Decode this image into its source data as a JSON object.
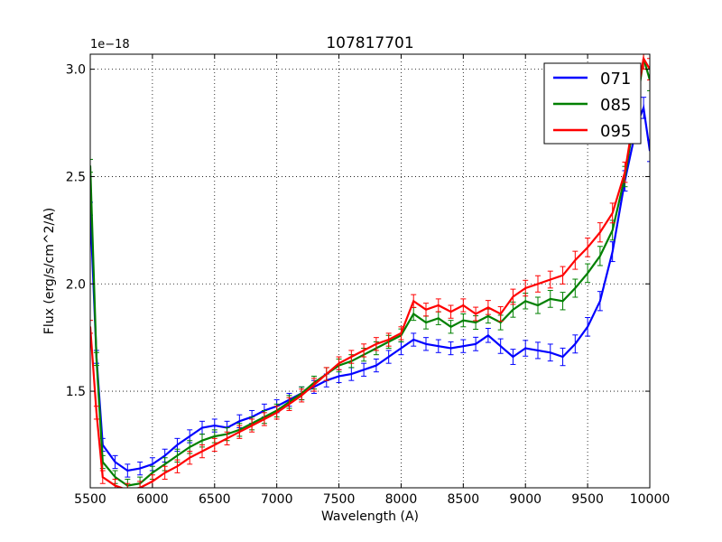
{
  "chart_data": {
    "type": "line",
    "title": "107817701",
    "xlabel": "Wavelength (A)",
    "ylabel": "Flux (erg/s/cm^2/A)",
    "offset_label": "1e−18",
    "xlim": [
      5500,
      10000
    ],
    "ylim": [
      1.05,
      3.07
    ],
    "xticks": [
      5500,
      6000,
      6500,
      7000,
      7500,
      8000,
      8500,
      9000,
      9500,
      10000
    ],
    "yticks": [
      1.5,
      2.0,
      2.5,
      3.0
    ],
    "xtick_labels": [
      "5500",
      "6000",
      "6500",
      "7000",
      "7500",
      "8000",
      "8500",
      "9000",
      "9500",
      "10000"
    ],
    "ytick_labels": [
      "1.5",
      "2.0",
      "2.5",
      "3.0"
    ],
    "grid": true,
    "legend_position": "top-right",
    "series": [
      {
        "name": "071",
        "color": "#0000ff",
        "x": [
          5500,
          5550,
          5600,
          5700,
          5800,
          5900,
          6000,
          6100,
          6200,
          6300,
          6400,
          6500,
          6600,
          6700,
          6800,
          6900,
          7000,
          7100,
          7200,
          7300,
          7400,
          7500,
          7600,
          7700,
          7800,
          7900,
          8000,
          8100,
          8200,
          8300,
          8400,
          8500,
          8600,
          8700,
          8800,
          8900,
          9000,
          9100,
          9200,
          9300,
          9400,
          9500,
          9600,
          9700,
          9800,
          9900,
          9950,
          10000
        ],
        "y": [
          2.35,
          1.66,
          1.25,
          1.17,
          1.13,
          1.14,
          1.16,
          1.2,
          1.25,
          1.29,
          1.33,
          1.34,
          1.33,
          1.36,
          1.38,
          1.41,
          1.43,
          1.46,
          1.49,
          1.52,
          1.55,
          1.57,
          1.58,
          1.6,
          1.62,
          1.66,
          1.7,
          1.74,
          1.72,
          1.71,
          1.7,
          1.71,
          1.72,
          1.76,
          1.71,
          1.66,
          1.7,
          1.69,
          1.68,
          1.66,
          1.72,
          1.8,
          1.92,
          2.15,
          2.48,
          2.75,
          2.82,
          2.62
        ]
      },
      {
        "name": "085",
        "color": "#008000",
        "x": [
          5500,
          5550,
          5600,
          5700,
          5800,
          5900,
          6000,
          6100,
          6200,
          6300,
          6400,
          6500,
          6600,
          6700,
          6800,
          6900,
          7000,
          7100,
          7200,
          7300,
          7400,
          7500,
          7600,
          7700,
          7800,
          7900,
          8000,
          8100,
          8200,
          8300,
          8400,
          8500,
          8600,
          8700,
          8800,
          8900,
          9000,
          9100,
          9200,
          9300,
          9400,
          9500,
          9600,
          9700,
          9800,
          9900,
          9950,
          10000
        ],
        "y": [
          2.55,
          1.65,
          1.17,
          1.1,
          1.06,
          1.07,
          1.12,
          1.16,
          1.2,
          1.24,
          1.27,
          1.29,
          1.3,
          1.32,
          1.35,
          1.38,
          1.41,
          1.45,
          1.49,
          1.54,
          1.58,
          1.62,
          1.64,
          1.67,
          1.7,
          1.73,
          1.76,
          1.86,
          1.82,
          1.84,
          1.8,
          1.83,
          1.82,
          1.85,
          1.82,
          1.88,
          1.92,
          1.9,
          1.93,
          1.92,
          1.98,
          2.05,
          2.13,
          2.25,
          2.5,
          2.85,
          3.05,
          2.95
        ]
      },
      {
        "name": "095",
        "color": "#ff0000",
        "x": [
          5500,
          5550,
          5600,
          5700,
          5800,
          5900,
          6000,
          6100,
          6200,
          6300,
          6400,
          6500,
          6600,
          6700,
          6800,
          6900,
          7000,
          7100,
          7200,
          7300,
          7400,
          7500,
          7600,
          7700,
          7800,
          7900,
          8000,
          8100,
          8200,
          8300,
          8400,
          8500,
          8600,
          8700,
          8800,
          8900,
          9000,
          9100,
          9200,
          9300,
          9400,
          9500,
          9600,
          9700,
          9800,
          9900,
          9950,
          10000
        ],
        "y": [
          1.8,
          1.4,
          1.1,
          1.06,
          1.04,
          1.05,
          1.08,
          1.12,
          1.15,
          1.19,
          1.22,
          1.25,
          1.28,
          1.31,
          1.34,
          1.37,
          1.4,
          1.44,
          1.48,
          1.53,
          1.58,
          1.63,
          1.66,
          1.69,
          1.72,
          1.74,
          1.77,
          1.92,
          1.88,
          1.9,
          1.87,
          1.9,
          1.86,
          1.89,
          1.86,
          1.94,
          1.98,
          2.0,
          2.02,
          2.04,
          2.11,
          2.17,
          2.24,
          2.33,
          2.52,
          2.88,
          3.05,
          3.0
        ]
      }
    ]
  }
}
